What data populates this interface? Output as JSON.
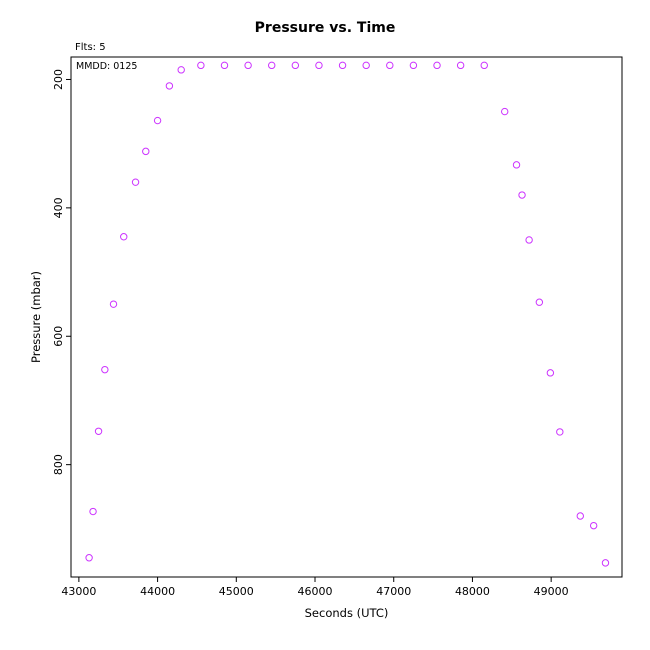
{
  "header": {
    "title": "Pressure  vs. Time",
    "flts_label": "Flts: 5",
    "mmdd_label": "MMDD: 0125"
  },
  "chart_data": {
    "type": "scatter",
    "title": "Pressure  vs. Time",
    "xlabel": "Seconds (UTC)",
    "ylabel": "Pressure (mbar)",
    "xlim": [
      42900,
      49900
    ],
    "ylim": [
      975,
      165
    ],
    "y_inverted": true,
    "grid": false,
    "marker": "open-circle",
    "marker_color": "#cc33ff",
    "x_ticks": [
      43000,
      44000,
      45000,
      46000,
      47000,
      48000,
      49000
    ],
    "x_tick_labels": [
      "43000",
      "44000",
      "45000",
      "46000",
      "47000",
      "48000",
      "49000"
    ],
    "y_ticks": [
      200,
      400,
      600,
      800
    ],
    "y_tick_labels": [
      "200",
      "400",
      "600",
      "800"
    ],
    "points": [
      {
        "x": 43130,
        "y": 945
      },
      {
        "x": 43180,
        "y": 873
      },
      {
        "x": 43250,
        "y": 748
      },
      {
        "x": 43330,
        "y": 652
      },
      {
        "x": 43440,
        "y": 550
      },
      {
        "x": 43570,
        "y": 445
      },
      {
        "x": 43720,
        "y": 360
      },
      {
        "x": 43850,
        "y": 312
      },
      {
        "x": 44000,
        "y": 264
      },
      {
        "x": 44150,
        "y": 210
      },
      {
        "x": 44300,
        "y": 185
      },
      {
        "x": 44550,
        "y": 178
      },
      {
        "x": 44850,
        "y": 178
      },
      {
        "x": 45150,
        "y": 178
      },
      {
        "x": 45450,
        "y": 178
      },
      {
        "x": 45750,
        "y": 178
      },
      {
        "x": 46050,
        "y": 178
      },
      {
        "x": 46350,
        "y": 178
      },
      {
        "x": 46650,
        "y": 178
      },
      {
        "x": 46950,
        "y": 178
      },
      {
        "x": 47250,
        "y": 178
      },
      {
        "x": 47550,
        "y": 178
      },
      {
        "x": 47850,
        "y": 178
      },
      {
        "x": 48150,
        "y": 178
      },
      {
        "x": 48410,
        "y": 250
      },
      {
        "x": 48560,
        "y": 333
      },
      {
        "x": 48630,
        "y": 380
      },
      {
        "x": 48720,
        "y": 450
      },
      {
        "x": 48850,
        "y": 547
      },
      {
        "x": 48990,
        "y": 657
      },
      {
        "x": 49110,
        "y": 749
      },
      {
        "x": 49370,
        "y": 880
      },
      {
        "x": 49540,
        "y": 895
      },
      {
        "x": 49690,
        "y": 953
      }
    ]
  }
}
